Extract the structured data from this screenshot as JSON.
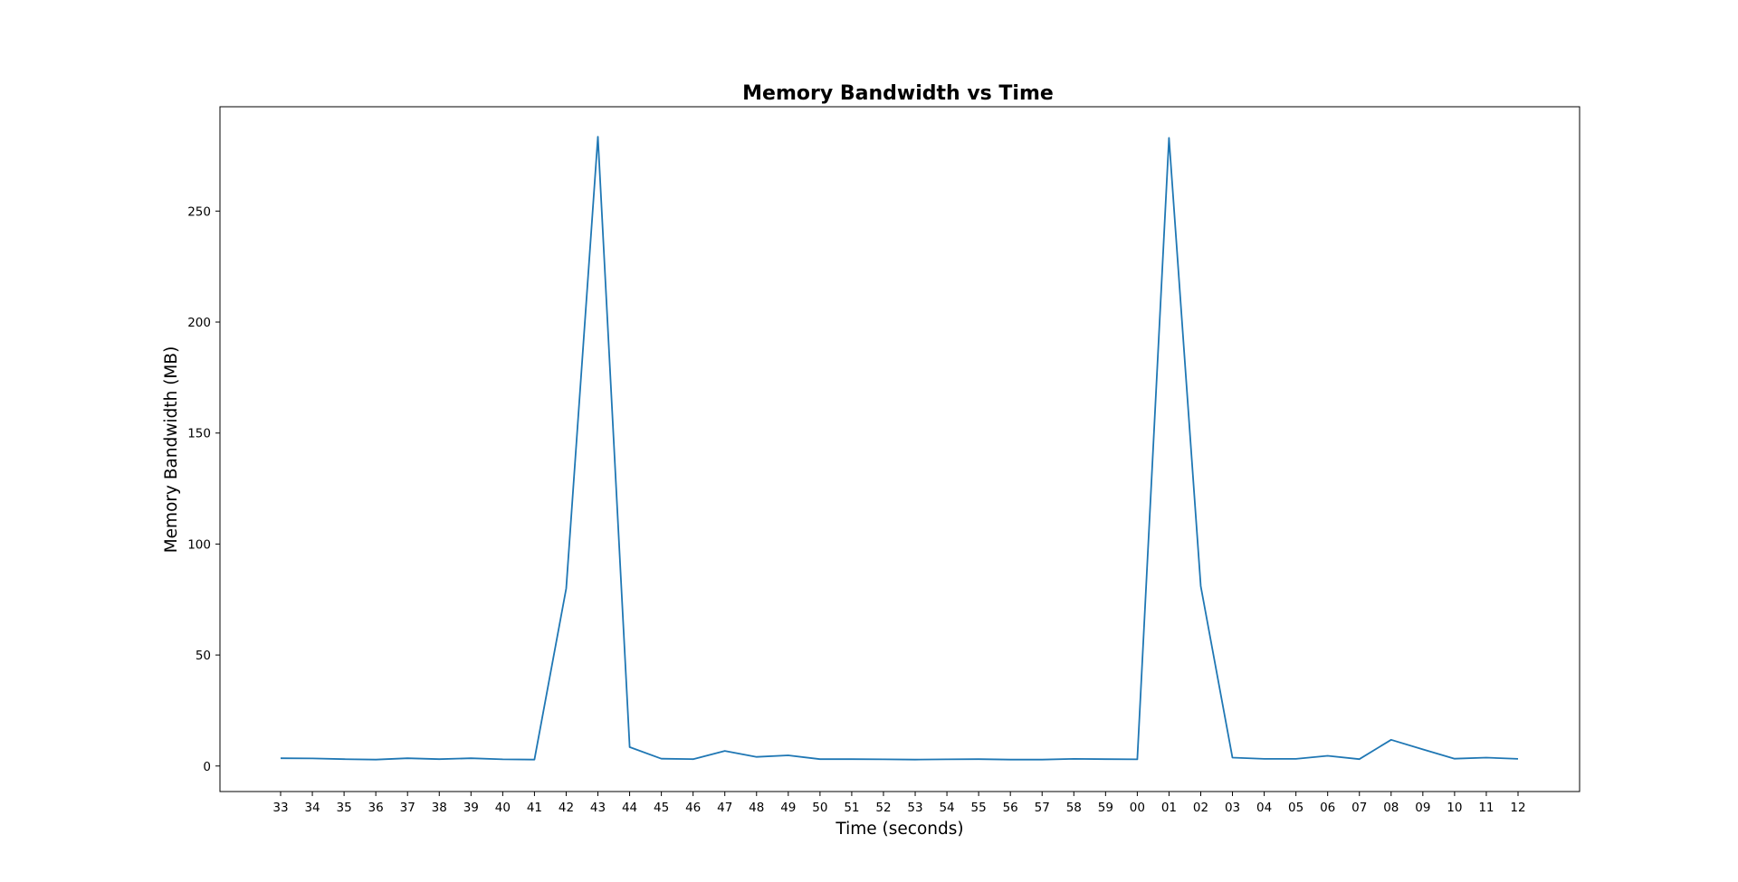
{
  "chart_data": {
    "type": "line",
    "title": "Memory Bandwidth vs Time",
    "xlabel": "Time (seconds)",
    "ylabel": "Memory Bandwidth (MB)",
    "x_categories": [
      "33",
      "34",
      "35",
      "36",
      "37",
      "38",
      "39",
      "40",
      "41",
      "42",
      "43",
      "44",
      "45",
      "46",
      "47",
      "48",
      "49",
      "50",
      "51",
      "52",
      "53",
      "54",
      "55",
      "56",
      "57",
      "58",
      "59",
      "00",
      "01",
      "02",
      "03",
      "04",
      "05",
      "06",
      "07",
      "08",
      "09",
      "10",
      "11",
      "12"
    ],
    "series": [
      {
        "color": "#1f77b4",
        "values": [
          3.5,
          3.4,
          3.1,
          2.9,
          3.5,
          3.1,
          3.5,
          3.0,
          2.9,
          80.0,
          283.5,
          8.5,
          3.3,
          3.1,
          6.8,
          4.1,
          4.8,
          3.1,
          3.1,
          3.0,
          2.9,
          3.0,
          3.1,
          2.9,
          2.9,
          3.2,
          3.1,
          3.0,
          283.0,
          81.0,
          3.8,
          3.2,
          3.2,
          4.6,
          3.1,
          11.8,
          7.5,
          3.3,
          3.8,
          3.2
        ]
      }
    ],
    "ylim": [
      -11.5,
      297
    ],
    "yticks": [
      0,
      50,
      100,
      150,
      200,
      250
    ],
    "grid": false,
    "legend": false
  }
}
